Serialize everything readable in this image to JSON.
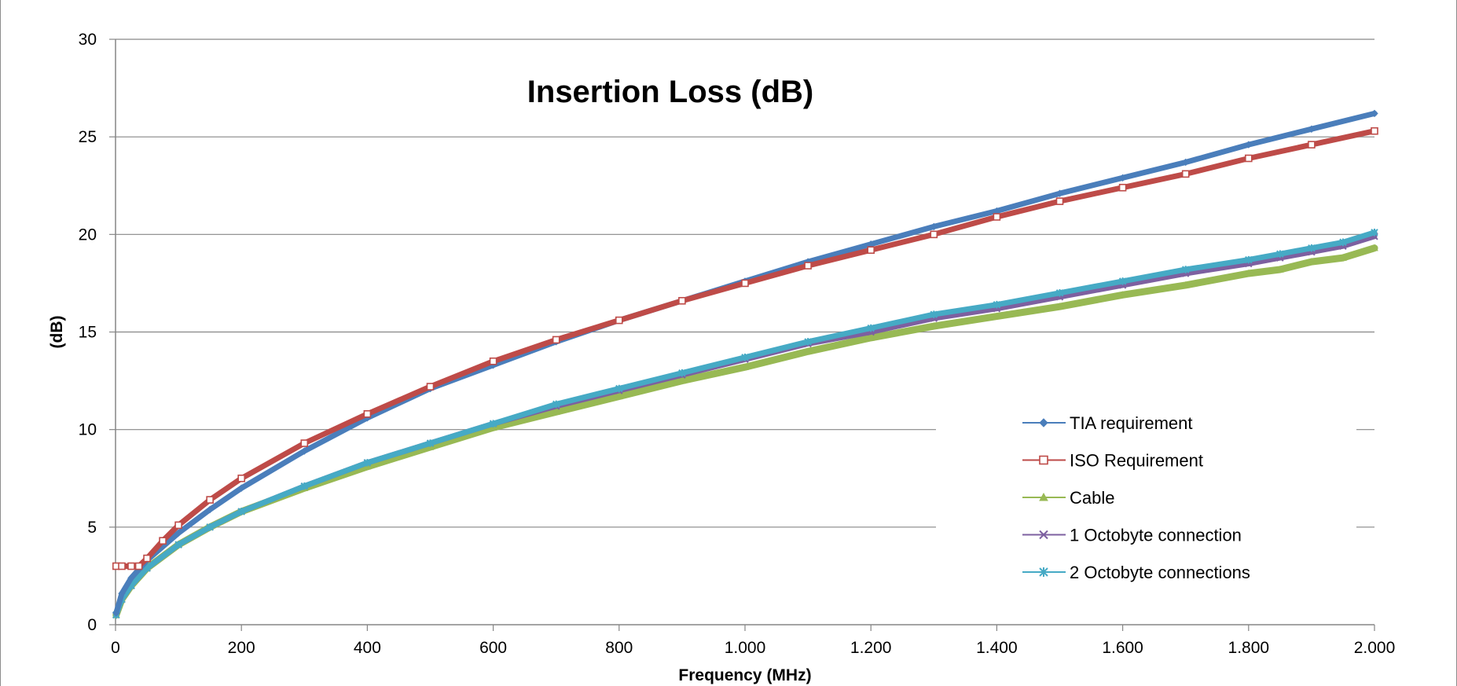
{
  "chart_data": {
    "type": "line",
    "title": "Insertion Loss (dB)",
    "xlabel": "Frequency (MHz)",
    "ylabel": "(dB)",
    "xlim": [
      0,
      2000
    ],
    "ylim": [
      0,
      30
    ],
    "x_ticks": [
      "0",
      "200",
      "400",
      "600",
      "800",
      "1.000",
      "1.200",
      "1.400",
      "1.600",
      "1.800",
      "2.000"
    ],
    "y_ticks": [
      "0",
      "5",
      "10",
      "15",
      "20",
      "25",
      "30"
    ],
    "grid": "horizontal",
    "legend_position": "bottom-right",
    "series": [
      {
        "name": "TIA requirement",
        "color": "#4a7ebb",
        "marker": "diamond",
        "x": [
          1,
          10,
          25,
          50,
          100,
          150,
          200,
          300,
          400,
          500,
          600,
          700,
          800,
          900,
          1000,
          1100,
          1200,
          1300,
          1400,
          1500,
          1600,
          1700,
          1800,
          1900,
          2000
        ],
        "y": [
          0.6,
          1.6,
          2.4,
          3.3,
          4.7,
          5.9,
          7.0,
          8.9,
          10.6,
          12.1,
          13.3,
          14.5,
          15.6,
          16.6,
          17.6,
          18.6,
          19.5,
          20.4,
          21.2,
          22.1,
          22.9,
          23.7,
          24.6,
          25.4,
          26.2
        ]
      },
      {
        "name": "ISO Requirement",
        "color": "#be4b48",
        "marker": "square",
        "x": [
          1,
          10,
          25,
          37,
          50,
          75,
          100,
          150,
          200,
          300,
          400,
          500,
          600,
          700,
          800,
          900,
          1000,
          1100,
          1200,
          1300,
          1400,
          1500,
          1600,
          1700,
          1800,
          1900,
          2000
        ],
        "y": [
          3.0,
          3.0,
          3.0,
          3.0,
          3.4,
          4.3,
          5.1,
          6.4,
          7.5,
          9.3,
          10.8,
          12.2,
          13.5,
          14.6,
          15.6,
          16.6,
          17.5,
          18.4,
          19.2,
          20.0,
          20.9,
          21.7,
          22.4,
          23.1,
          23.9,
          24.6,
          25.3
        ]
      },
      {
        "name": "Cable",
        "color": "#98b954",
        "marker": "triangle",
        "x": [
          1,
          10,
          25,
          50,
          100,
          150,
          200,
          300,
          400,
          500,
          600,
          700,
          800,
          900,
          1000,
          1100,
          1200,
          1300,
          1400,
          1500,
          1600,
          1700,
          1800,
          1850,
          1900,
          1950,
          2000
        ],
        "y": [
          0.5,
          1.3,
          2.0,
          2.9,
          4.1,
          5.0,
          5.8,
          7.0,
          8.1,
          9.1,
          10.1,
          10.9,
          11.7,
          12.5,
          13.2,
          14.0,
          14.7,
          15.3,
          15.8,
          16.3,
          16.9,
          17.4,
          18.0,
          18.2,
          18.6,
          18.8,
          19.3
        ]
      },
      {
        "name": "1 Octobyte connection",
        "color": "#7d60a0",
        "marker": "x",
        "x": [
          1,
          10,
          25,
          50,
          100,
          150,
          200,
          300,
          400,
          500,
          600,
          700,
          800,
          900,
          1000,
          1100,
          1200,
          1300,
          1400,
          1500,
          1600,
          1700,
          1800,
          1850,
          1900,
          1950,
          2000
        ],
        "y": [
          0.5,
          1.3,
          2.0,
          2.9,
          4.1,
          5.0,
          5.8,
          7.1,
          8.3,
          9.3,
          10.3,
          11.2,
          12.0,
          12.8,
          13.6,
          14.4,
          15.0,
          15.7,
          16.2,
          16.8,
          17.4,
          18.0,
          18.5,
          18.8,
          19.1,
          19.4,
          19.9
        ]
      },
      {
        "name": "2 Octobyte connections",
        "color": "#46aac5",
        "marker": "asterisk",
        "x": [
          1,
          10,
          25,
          50,
          100,
          150,
          200,
          300,
          400,
          500,
          600,
          700,
          800,
          900,
          1000,
          1100,
          1200,
          1300,
          1400,
          1500,
          1600,
          1700,
          1800,
          1850,
          1900,
          1950,
          2000
        ],
        "y": [
          0.5,
          1.3,
          2.0,
          2.9,
          4.1,
          5.0,
          5.8,
          7.1,
          8.3,
          9.3,
          10.3,
          11.3,
          12.1,
          12.9,
          13.7,
          14.5,
          15.2,
          15.9,
          16.4,
          17.0,
          17.6,
          18.2,
          18.7,
          19.0,
          19.3,
          19.6,
          20.1
        ]
      }
    ]
  }
}
